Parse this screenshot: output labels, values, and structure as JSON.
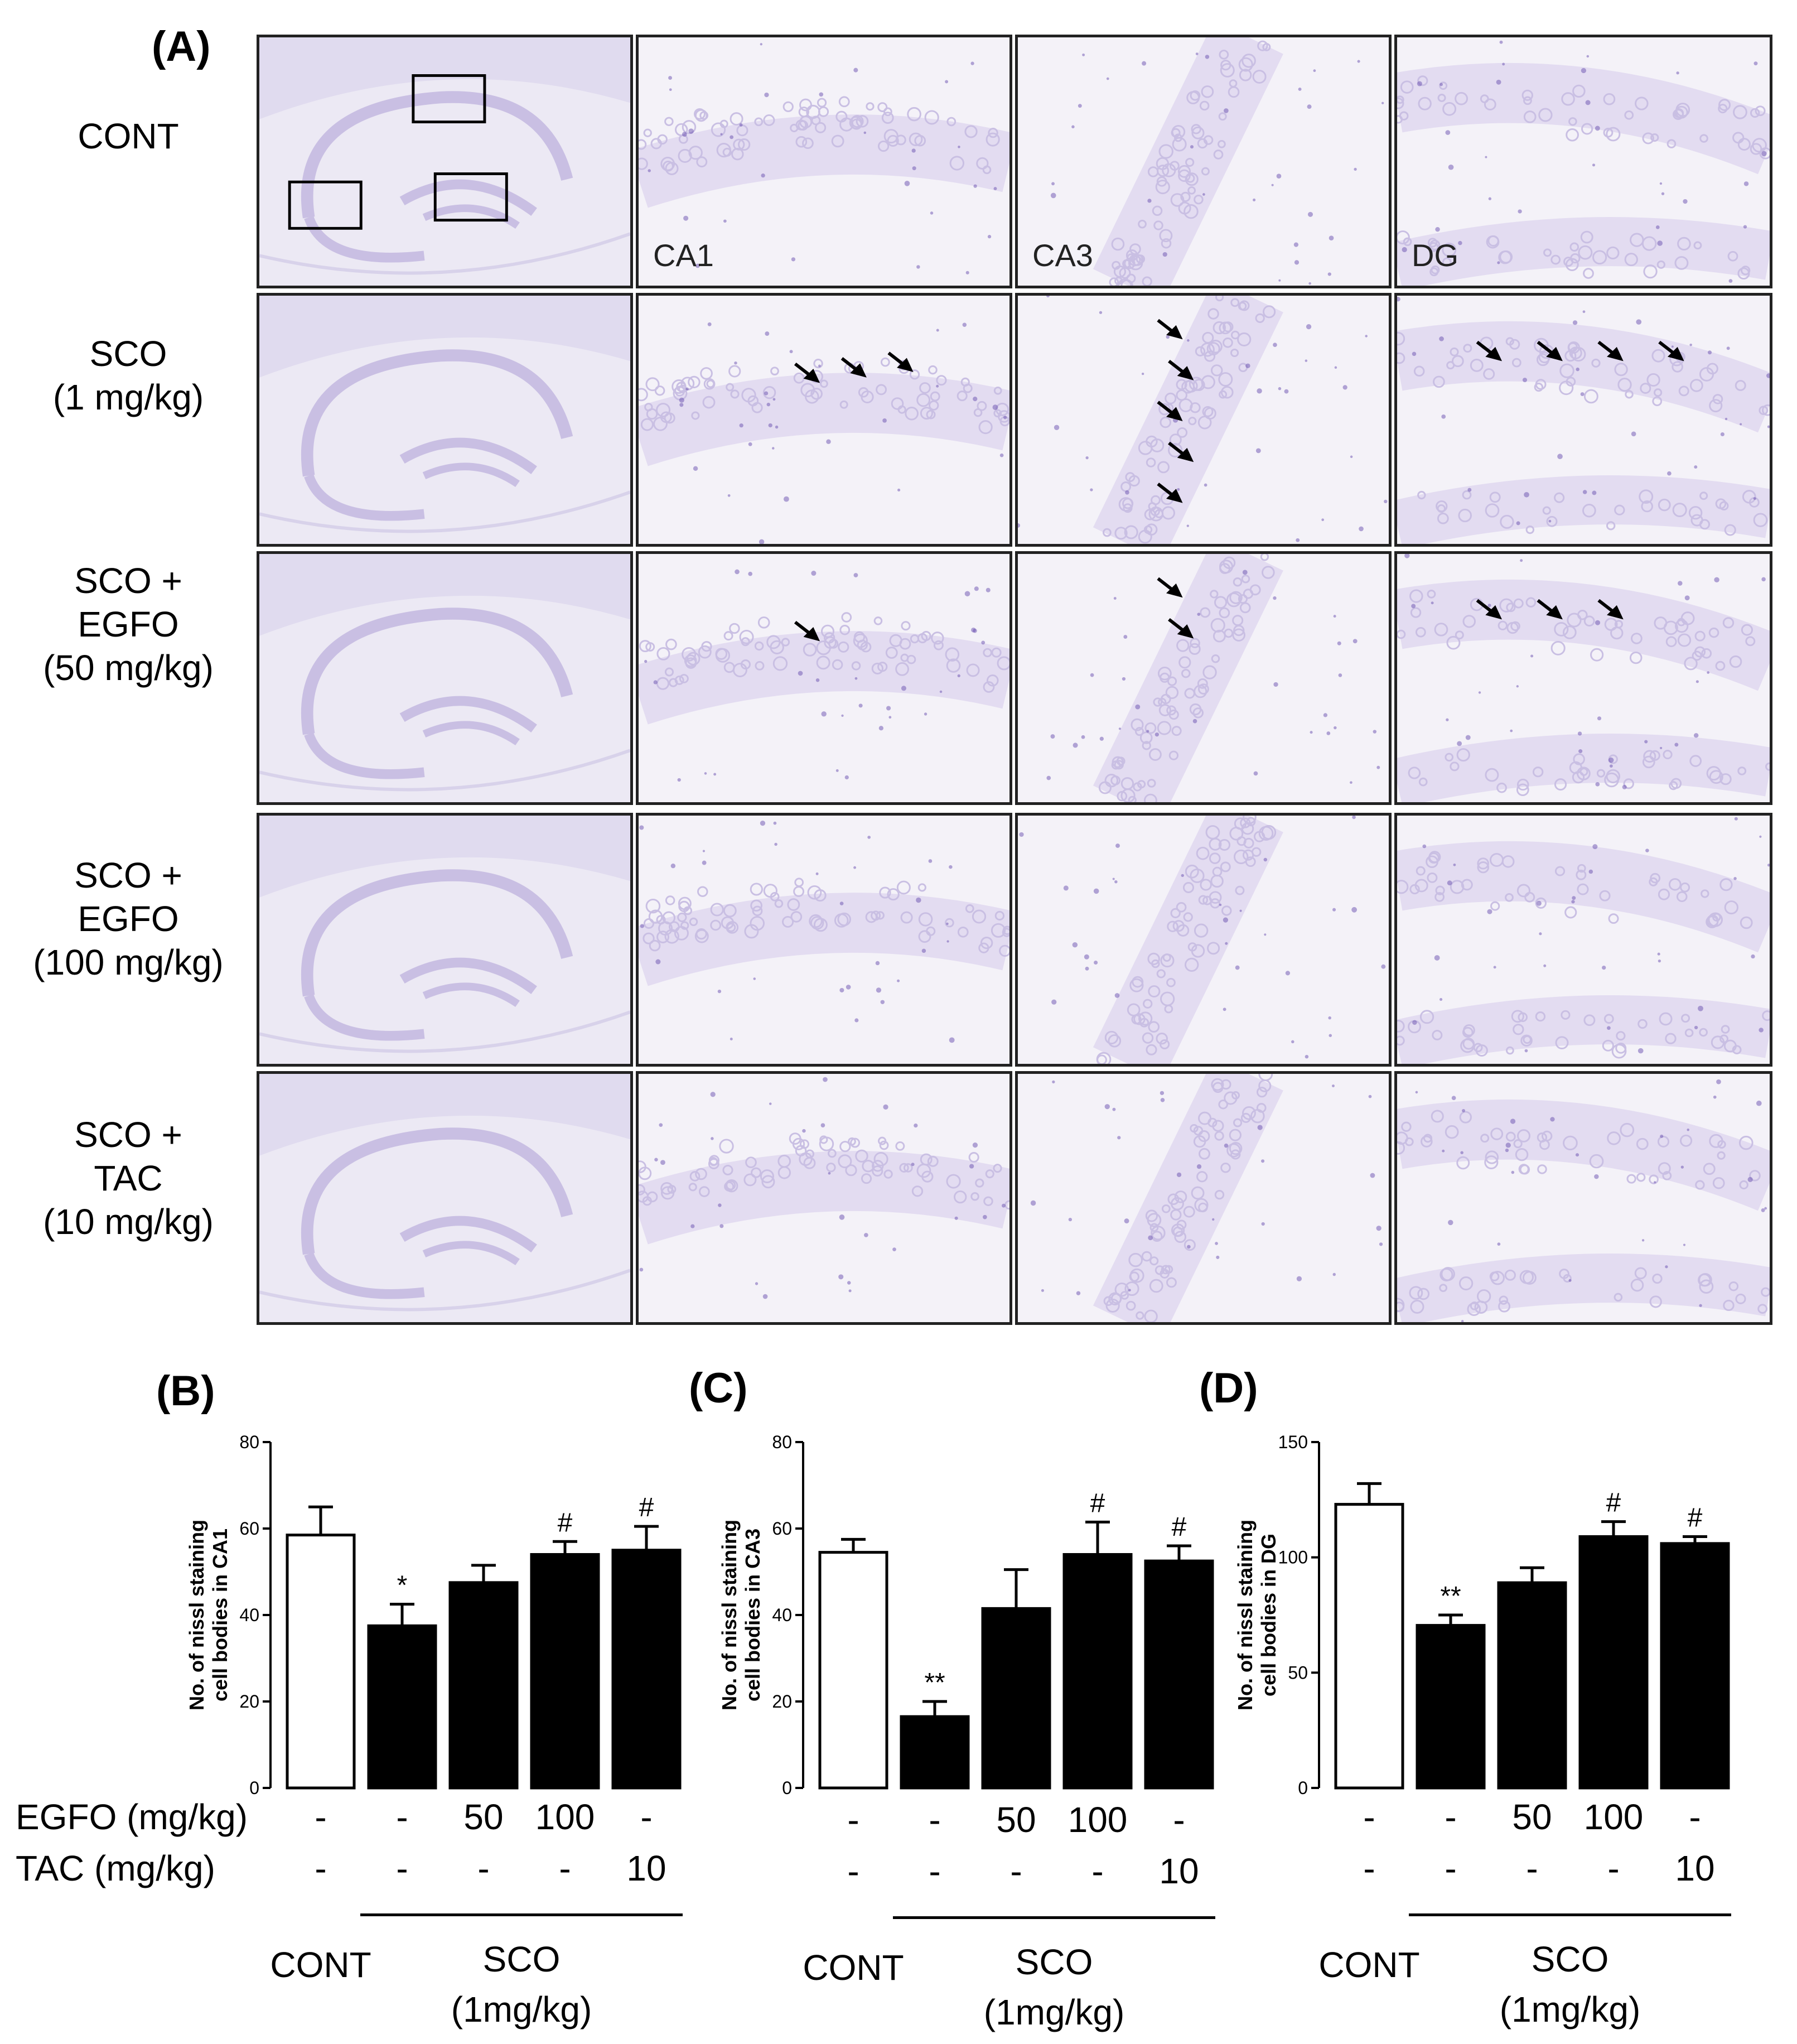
{
  "panel_a": {
    "letter": "(A)",
    "rows": [
      {
        "label_lines": [
          "CONT"
        ],
        "arrows": {
          "ca1": 0,
          "ca3": 0,
          "dg": 0
        }
      },
      {
        "label_lines": [
          "SCO",
          "(1 mg/kg)"
        ],
        "arrows": {
          "ca1": 3,
          "ca3": 5,
          "dg": 4
        }
      },
      {
        "label_lines": [
          "SCO +",
          "EGFO",
          "(50 mg/kg)"
        ],
        "arrows": {
          "ca1": 1,
          "ca3": 2,
          "dg": 3
        }
      },
      {
        "label_lines": [
          "SCO +",
          "EGFO",
          "(100 mg/kg)"
        ],
        "arrows": {
          "ca1": 0,
          "ca3": 0,
          "dg": 0
        }
      },
      {
        "label_lines": [
          "SCO +",
          "TAC",
          "(10 mg/kg)"
        ],
        "arrows": {
          "ca1": 0,
          "ca3": 0,
          "dg": 0
        }
      }
    ],
    "region_labels": [
      "CA1",
      "CA3",
      "DG"
    ],
    "colors": {
      "stain_light": "#c9bfe3",
      "stain_dark": "#6a4fb0",
      "tissue": "#ece9f4"
    }
  },
  "chart_data": [
    {
      "type": "bar",
      "panel": "(B)",
      "ylabel_lines": [
        "No. of nissl staining",
        "cell bodies in CA1"
      ],
      "ylim": [
        0,
        80
      ],
      "yticks": [
        0,
        20,
        40,
        60,
        80
      ],
      "values": [
        58.5,
        37.5,
        47.5,
        54,
        55
      ],
      "errors": [
        6.5,
        5,
        4,
        3,
        5.5
      ],
      "fills": [
        "#ffffff",
        "#000000",
        "#000000",
        "#000000",
        "#000000"
      ],
      "annotations": [
        "",
        "*",
        "",
        "#",
        "#"
      ],
      "egfo_label": "EGFO (mg/kg)",
      "tac_label": "TAC (mg/kg)",
      "egfo": [
        "-",
        "-",
        "50",
        "100",
        "-"
      ],
      "tac": [
        "-",
        "-",
        "-",
        "-",
        "10"
      ],
      "cont_label": "CONT",
      "sco_label": "SCO",
      "sco_dose": "(1mg/kg)"
    },
    {
      "type": "bar",
      "panel": "(C)",
      "ylabel_lines": [
        "No. of nissl staining",
        "cell bodies in CA3"
      ],
      "ylim": [
        0,
        80
      ],
      "yticks": [
        0,
        20,
        40,
        60,
        80
      ],
      "values": [
        54.5,
        16.5,
        41.5,
        54,
        52.5
      ],
      "errors": [
        3,
        3.5,
        9,
        7.5,
        3.5
      ],
      "fills": [
        "#ffffff",
        "#000000",
        "#000000",
        "#000000",
        "#000000"
      ],
      "annotations": [
        "",
        "**",
        "",
        "#",
        "#"
      ],
      "egfo": [
        "-",
        "-",
        "50",
        "100",
        "-"
      ],
      "tac": [
        "-",
        "-",
        "-",
        "-",
        "10"
      ],
      "cont_label": "CONT",
      "sco_label": "SCO",
      "sco_dose": "(1mg/kg)"
    },
    {
      "type": "bar",
      "panel": "(D)",
      "ylabel_lines": [
        "No. of nissl staining",
        "cell bodies in DG"
      ],
      "ylim": [
        0,
        150
      ],
      "yticks": [
        0,
        50,
        100,
        150
      ],
      "values": [
        123,
        70.5,
        89,
        109,
        106
      ],
      "errors": [
        9,
        4.5,
        6.5,
        6.5,
        3
      ],
      "fills": [
        "#ffffff",
        "#000000",
        "#000000",
        "#000000",
        "#000000"
      ],
      "annotations": [
        "",
        "**",
        "",
        "#",
        "#"
      ],
      "egfo": [
        "-",
        "-",
        "50",
        "100",
        "-"
      ],
      "tac": [
        "-",
        "-",
        "-",
        "-",
        "10"
      ],
      "cont_label": "CONT",
      "sco_label": "SCO",
      "sco_dose": "(1mg/kg)"
    }
  ]
}
